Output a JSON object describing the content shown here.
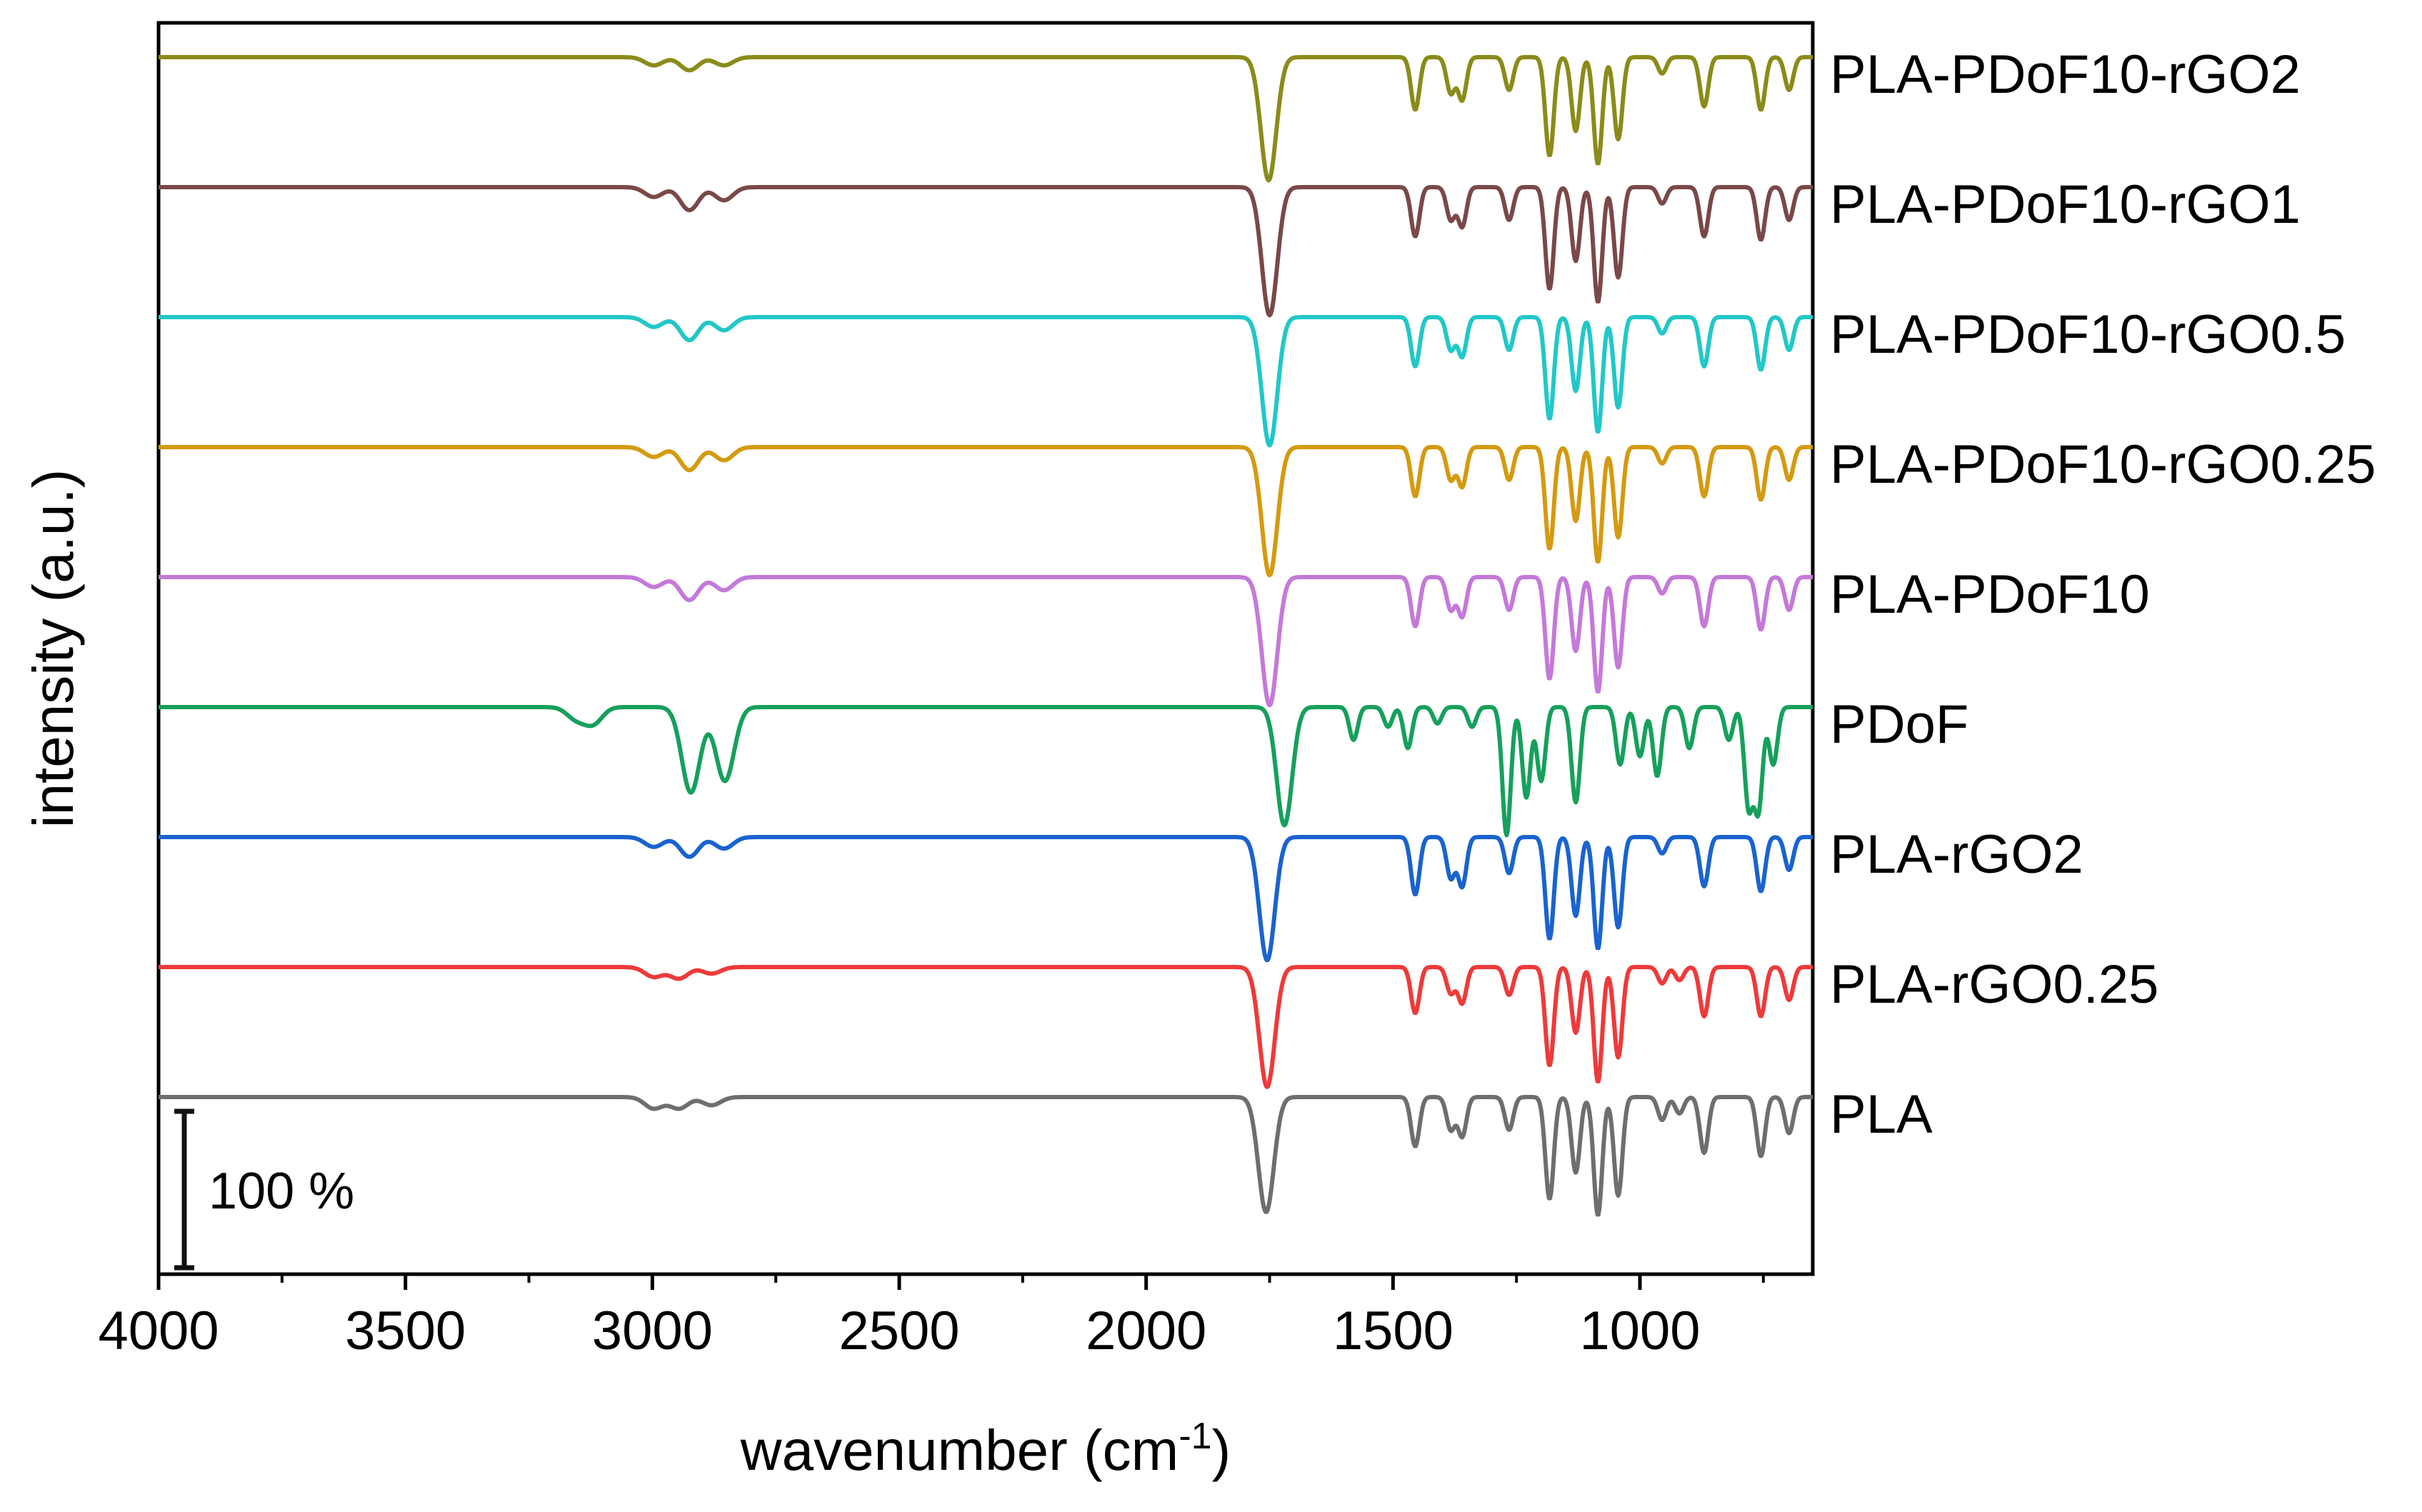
{
  "chart_data": {
    "type": "line",
    "title": "",
    "xlabel": "wavenumber (cm",
    "xlabel_superscript": "-1",
    "xlabel_suffix": ")",
    "ylabel": "intensity (a.u.)",
    "xlim": [
      4000,
      650
    ],
    "x_reversed": true,
    "xticks": [
      4000,
      3500,
      3000,
      2500,
      2000,
      1500,
      1000
    ],
    "xtick_labels": [
      "4000",
      "3500",
      "3000",
      "2500",
      "2000",
      "1500",
      "1000"
    ],
    "yticks": "none",
    "grid": false,
    "legend": "labels to the right of each trace",
    "scale_bar": {
      "label": "100 %",
      "value_percent": 100
    },
    "series": [
      {
        "name": "PLA-PDoF10-rGO2",
        "color": "#8b8b1a",
        "profile": "blend_rgo2"
      },
      {
        "name": "PLA-PDoF10-rGO1",
        "color": "#7a4848",
        "profile": "blend"
      },
      {
        "name": "PLA-PDoF10-rGO0.5",
        "color": "#22c7c7",
        "profile": "blend"
      },
      {
        "name": "PLA-PDoF10-rGO0.25",
        "color": "#d49a10",
        "profile": "blend"
      },
      {
        "name": "PLA-PDoF10",
        "color": "#c479d9",
        "profile": "blend"
      },
      {
        "name": "PDoF",
        "color": "#16a05c",
        "profile": "pdof"
      },
      {
        "name": "PLA-rGO2",
        "color": "#1a63cf",
        "profile": "pla_rgo2"
      },
      {
        "name": "PLA-rGO0.25",
        "color": "#ee3a3a",
        "profile": "pla"
      },
      {
        "name": "PLA",
        "color": "#6e6e6e",
        "profile": "pla_neat"
      }
    ],
    "peaks": {
      "pla_neat": [
        [
          2997,
          0.07
        ],
        [
          2946,
          0.07
        ],
        [
          2880,
          0.05
        ],
        [
          1757,
          0.7
        ],
        [
          1455,
          0.3
        ],
        [
          1383,
          0.2
        ],
        [
          1360,
          0.24
        ],
        [
          1265,
          0.2
        ],
        [
          1183,
          0.62
        ],
        [
          1130,
          0.46
        ],
        [
          1085,
          0.72
        ],
        [
          1044,
          0.6
        ],
        [
          955,
          0.14
        ],
        [
          920,
          0.1
        ],
        [
          870,
          0.34
        ],
        [
          755,
          0.36
        ],
        [
          698,
          0.22
        ]
      ],
      "pla": [
        [
          2997,
          0.06
        ],
        [
          2946,
          0.07
        ],
        [
          2880,
          0.04
        ],
        [
          1755,
          0.73
        ],
        [
          1455,
          0.28
        ],
        [
          1383,
          0.16
        ],
        [
          1360,
          0.22
        ],
        [
          1265,
          0.17
        ],
        [
          1183,
          0.6
        ],
        [
          1130,
          0.4
        ],
        [
          1085,
          0.7
        ],
        [
          1044,
          0.55
        ],
        [
          955,
          0.1
        ],
        [
          920,
          0.08
        ],
        [
          870,
          0.3
        ],
        [
          755,
          0.3
        ],
        [
          698,
          0.2
        ]
      ],
      "pla_rgo2": [
        [
          2997,
          0.06
        ],
        [
          2925,
          0.12
        ],
        [
          2855,
          0.07
        ],
        [
          1755,
          0.75
        ],
        [
          1455,
          0.35
        ],
        [
          1383,
          0.25
        ],
        [
          1360,
          0.3
        ],
        [
          1265,
          0.22
        ],
        [
          1183,
          0.62
        ],
        [
          1130,
          0.48
        ],
        [
          1085,
          0.68
        ],
        [
          1044,
          0.55
        ],
        [
          955,
          0.1
        ],
        [
          870,
          0.3
        ],
        [
          755,
          0.33
        ],
        [
          698,
          0.2
        ]
      ],
      "pdof": [
        [
          3155,
          0.07
        ],
        [
          3120,
          0.1
        ],
        [
          2922,
          0.52
        ],
        [
          2853,
          0.45
        ],
        [
          1720,
          0.72
        ],
        [
          1580,
          0.2
        ],
        [
          1510,
          0.12
        ],
        [
          1470,
          0.25
        ],
        [
          1410,
          0.1
        ],
        [
          1340,
          0.12
        ],
        [
          1270,
          0.78
        ],
        [
          1230,
          0.55
        ],
        [
          1200,
          0.45
        ],
        [
          1130,
          0.58
        ],
        [
          1040,
          0.35
        ],
        [
          1000,
          0.3
        ],
        [
          965,
          0.42
        ],
        [
          900,
          0.25
        ],
        [
          820,
          0.2
        ],
        [
          780,
          0.6
        ],
        [
          760,
          0.62
        ],
        [
          730,
          0.35
        ]
      ],
      "blend": [
        [
          2997,
          0.06
        ],
        [
          2925,
          0.14
        ],
        [
          2855,
          0.08
        ],
        [
          1750,
          0.78
        ],
        [
          1455,
          0.3
        ],
        [
          1383,
          0.2
        ],
        [
          1360,
          0.24
        ],
        [
          1265,
          0.2
        ],
        [
          1183,
          0.62
        ],
        [
          1130,
          0.45
        ],
        [
          1085,
          0.7
        ],
        [
          1044,
          0.55
        ],
        [
          955,
          0.1
        ],
        [
          870,
          0.3
        ],
        [
          755,
          0.32
        ],
        [
          698,
          0.2
        ]
      ],
      "blend_rgo2": [
        [
          2997,
          0.05
        ],
        [
          2925,
          0.08
        ],
        [
          2855,
          0.05
        ],
        [
          1752,
          0.75
        ],
        [
          1455,
          0.32
        ],
        [
          1383,
          0.22
        ],
        [
          1360,
          0.26
        ],
        [
          1265,
          0.2
        ],
        [
          1183,
          0.6
        ],
        [
          1130,
          0.45
        ],
        [
          1085,
          0.65
        ],
        [
          1044,
          0.5
        ],
        [
          955,
          0.1
        ],
        [
          870,
          0.3
        ],
        [
          755,
          0.32
        ],
        [
          698,
          0.2
        ]
      ]
    }
  }
}
